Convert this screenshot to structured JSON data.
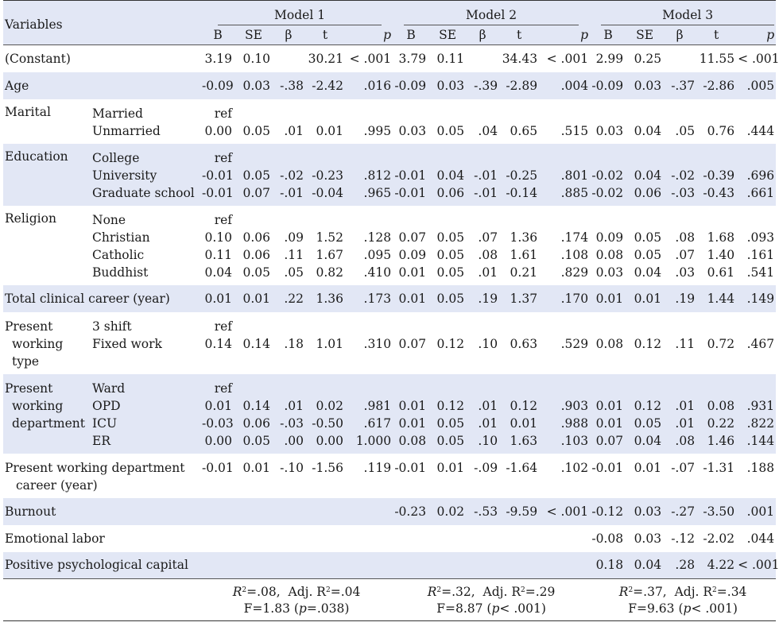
{
  "header": {
    "variables_label": "Variables",
    "models": [
      "Model 1",
      "Model 2",
      "Model 3"
    ],
    "columns": [
      "B",
      "SE",
      "β",
      "t",
      "p"
    ]
  },
  "rows": [
    {
      "var": "(Constant)",
      "sub": [
        ""
      ],
      "m1": [
        [
          "3.19",
          "0.10",
          "",
          "30.21",
          "< .001"
        ]
      ],
      "m2": [
        [
          "3.79",
          "0.11",
          "",
          "34.43",
          "< .001"
        ]
      ],
      "m3": [
        [
          "2.99",
          "0.25",
          "",
          "11.55",
          "< .001"
        ]
      ]
    },
    {
      "var": "Age",
      "sub": [
        ""
      ],
      "m1": [
        [
          "-0.09",
          "0.03",
          "-.38",
          "-2.42",
          ".016"
        ]
      ],
      "m2": [
        [
          "-0.09",
          "0.03",
          "-.39",
          "-2.89",
          ".004"
        ]
      ],
      "m3": [
        [
          "-0.09",
          "0.03",
          "-.37",
          "-2.86",
          ".005"
        ]
      ]
    },
    {
      "var": "Marital",
      "sub": [
        "Married",
        "Unmarried"
      ],
      "m1": [
        [
          "ref",
          "",
          "",
          "",
          ""
        ],
        [
          "0.00",
          "0.05",
          ".01",
          "0.01",
          ".995"
        ]
      ],
      "m2": [
        [
          "",
          "",
          "",
          "",
          ""
        ],
        [
          "0.03",
          "0.05",
          ".04",
          "0.65",
          ".515"
        ]
      ],
      "m3": [
        [
          "",
          "",
          "",
          "",
          ""
        ],
        [
          "0.03",
          "0.04",
          ".05",
          "0.76",
          ".444"
        ]
      ]
    },
    {
      "var": "Education",
      "sub": [
        "College",
        "University",
        "Graduate school"
      ],
      "m1": [
        [
          "ref",
          "",
          "",
          "",
          ""
        ],
        [
          "-0.01",
          "0.05",
          "-.02",
          "-0.23",
          ".812"
        ],
        [
          "-0.01",
          "0.07",
          "-.01",
          "-0.04",
          ".965"
        ]
      ],
      "m2": [
        [
          "",
          "",
          "",
          "",
          ""
        ],
        [
          "-0.01",
          "0.04",
          "-.01",
          "-0.25",
          ".801"
        ],
        [
          "-0.01",
          "0.06",
          "-.01",
          "-0.14",
          ".885"
        ]
      ],
      "m3": [
        [
          "",
          "",
          "",
          "",
          ""
        ],
        [
          "-0.02",
          "0.04",
          "-.02",
          "-0.39",
          ".696"
        ],
        [
          "-0.02",
          "0.06",
          "-.03",
          "-0.43",
          ".661"
        ]
      ]
    },
    {
      "var": "Religion",
      "sub": [
        "None",
        "Christian",
        "Catholic",
        "Buddhist"
      ],
      "m1": [
        [
          "ref",
          "",
          "",
          "",
          ""
        ],
        [
          "0.10",
          "0.06",
          ".09",
          "1.52",
          ".128"
        ],
        [
          "0.11",
          "0.06",
          ".11",
          "1.67",
          ".095"
        ],
        [
          "0.04",
          "0.05",
          ".05",
          "0.82",
          ".410"
        ]
      ],
      "m2": [
        [
          "",
          "",
          "",
          "",
          ""
        ],
        [
          "0.07",
          "0.05",
          ".07",
          "1.36",
          ".174"
        ],
        [
          "0.09",
          "0.05",
          ".08",
          "1.61",
          ".108"
        ],
        [
          "0.01",
          "0.05",
          ".01",
          "0.21",
          ".829"
        ]
      ],
      "m3": [
        [
          "",
          "",
          "",
          "",
          ""
        ],
        [
          "0.09",
          "0.05",
          ".08",
          "1.68",
          ".093"
        ],
        [
          "0.08",
          "0.05",
          ".07",
          "1.40",
          ".161"
        ],
        [
          "0.03",
          "0.04",
          ".03",
          "0.61",
          ".541"
        ]
      ]
    },
    {
      "var": "Total clinical career (year)",
      "sub": [
        ""
      ],
      "m1": [
        [
          "0.01",
          "0.01",
          ".22",
          "1.36",
          ".173"
        ]
      ],
      "m2": [
        [
          "0.01",
          "0.05",
          ".19",
          "1.37",
          ".170"
        ]
      ],
      "m3": [
        [
          "0.01",
          "0.01",
          ".19",
          "1.44",
          ".149"
        ]
      ]
    },
    {
      "var_lines": [
        "Present",
        "working",
        "type"
      ],
      "sub": [
        "3 shift",
        "Fixed work"
      ],
      "m1": [
        [
          "ref",
          "",
          "",
          "",
          ""
        ],
        [
          "0.14",
          "0.14",
          ".18",
          "1.01",
          ".310"
        ]
      ],
      "m2": [
        [
          "",
          "",
          "",
          "",
          ""
        ],
        [
          "0.07",
          "0.12",
          ".10",
          "0.63",
          ".529"
        ]
      ],
      "m3": [
        [
          "",
          "",
          "",
          "",
          ""
        ],
        [
          "0.08",
          "0.12",
          ".11",
          "0.72",
          ".467"
        ]
      ]
    },
    {
      "var_lines": [
        "Present",
        "working",
        "department"
      ],
      "sub": [
        "Ward",
        "OPD",
        "ICU",
        "ER"
      ],
      "m1": [
        [
          "ref",
          "",
          "",
          "",
          ""
        ],
        [
          "0.01",
          "0.14",
          ".01",
          "0.02",
          ".981"
        ],
        [
          "-0.03",
          "0.06",
          "-.03",
          "-0.50",
          ".617"
        ],
        [
          "0.00",
          "0.05",
          ".00",
          "0.00",
          "1.000"
        ]
      ],
      "m2": [
        [
          "",
          "",
          "",
          "",
          ""
        ],
        [
          "0.01",
          "0.12",
          ".01",
          "0.12",
          ".903"
        ],
        [
          "0.01",
          "0.05",
          ".01",
          "0.01",
          ".988"
        ],
        [
          "0.08",
          "0.05",
          ".10",
          "1.63",
          ".103"
        ]
      ],
      "m3": [
        [
          "",
          "",
          "",
          "",
          ""
        ],
        [
          "0.01",
          "0.12",
          ".01",
          "0.08",
          ".931"
        ],
        [
          "0.01",
          "0.05",
          ".01",
          "0.22",
          ".822"
        ],
        [
          "0.07",
          "0.04",
          ".08",
          "1.46",
          ".144"
        ]
      ]
    },
    {
      "var_lines": [
        "Present working department",
        "career (year)"
      ],
      "sub": [
        ""
      ],
      "m1": [
        [
          "-0.01",
          "0.01",
          "-.10",
          "-1.56",
          ".119"
        ]
      ],
      "m2": [
        [
          "-0.01",
          "0.01",
          "-.09",
          "-1.64",
          ".102"
        ]
      ],
      "m3": [
        [
          "-0.01",
          "0.01",
          "-.07",
          "-1.31",
          ".188"
        ]
      ]
    },
    {
      "var": "Burnout",
      "sub": [
        ""
      ],
      "m1": [
        [
          "",
          "",
          "",
          "",
          ""
        ]
      ],
      "m2": [
        [
          "-0.23",
          "0.02",
          "-.53",
          "-9.59",
          "< .001"
        ]
      ],
      "m3": [
        [
          "-0.12",
          "0.03",
          "-.27",
          "-3.50",
          ".001"
        ]
      ]
    },
    {
      "var": "Emotional labor",
      "sub": [
        ""
      ],
      "m1": [
        [
          "",
          "",
          "",
          "",
          ""
        ]
      ],
      "m2": [
        [
          "",
          "",
          "",
          "",
          ""
        ]
      ],
      "m3": [
        [
          "-0.08",
          "0.03",
          "-.12",
          "-2.02",
          ".044"
        ]
      ]
    },
    {
      "var": "Positive psychological capital",
      "sub": [
        ""
      ],
      "m1": [
        [
          "",
          "",
          "",
          "",
          ""
        ]
      ],
      "m2": [
        [
          "",
          "",
          "",
          "",
          ""
        ]
      ],
      "m3": [
        [
          "0.18",
          "0.04",
          ".28",
          "4.22",
          "< .001"
        ]
      ]
    }
  ],
  "fit": [
    {
      "r2": "=.08,",
      "adj": "Adj. R",
      "adj_val": "=.04",
      "f": "F=1.83 (",
      "p": "p",
      "p_val": "=.038)"
    },
    {
      "r2": "=.32,",
      "adj": "Adj. R",
      "adj_val": "=.29",
      "f": "F=8.87 (",
      "p": "p",
      "p_val": "< .001)"
    },
    {
      "r2": "=.37,",
      "adj": "Adj. R",
      "adj_val": "=.34",
      "f": "F=9.63 (",
      "p": "p",
      "p_val": "< .001)"
    }
  ],
  "fit_labels": {
    "r": "R",
    "sup2": "2"
  },
  "style": {
    "shade_color": "#e2e7f5"
  }
}
